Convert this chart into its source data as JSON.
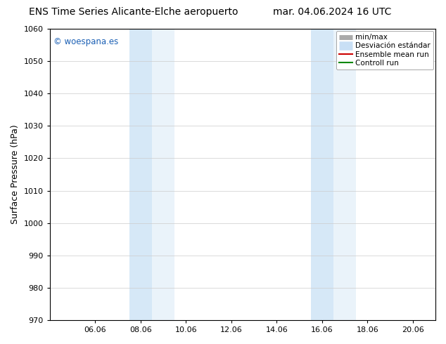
{
  "title_left": "ENS Time Series Alicante-Elche aeropuerto",
  "title_right": "mar. 04.06.2024 16 UTC",
  "ylabel": "Surface Pressure (hPa)",
  "ylim": [
    970,
    1060
  ],
  "yticks": [
    970,
    980,
    990,
    1000,
    1010,
    1020,
    1030,
    1040,
    1050,
    1060
  ],
  "xtick_labels": [
    "06.06",
    "08.06",
    "10.06",
    "12.06",
    "14.06",
    "16.06",
    "18.06",
    "20.06"
  ],
  "xtick_positions": [
    2,
    4,
    6,
    8,
    10,
    12,
    14,
    16
  ],
  "xlim": [
    0,
    17
  ],
  "background_color": "#ffffff",
  "plot_bg_color": "#ffffff",
  "grid_color": "#cccccc",
  "shade_color": "#d6e8f7",
  "shade_band1_start": 3.5,
  "shade_band1_mid": 4.5,
  "shade_band1_end": 5.5,
  "shade_band2_start": 11.5,
  "shade_band2_mid": 12.5,
  "shade_band2_end": 13.5,
  "watermark_text": "© woespana.es",
  "watermark_color": "#1a5fb4",
  "legend_labels": [
    "min/max",
    "Desviación estándar",
    "Ensemble mean run",
    "Controll run"
  ],
  "legend_colors": [
    "#aaaaaa",
    "#c8dff5",
    "#cc0000",
    "#008800"
  ],
  "legend_lws": [
    5,
    9,
    1.5,
    1.5
  ],
  "title_fontsize": 10,
  "ylabel_fontsize": 9,
  "tick_fontsize": 8,
  "legend_fontsize": 7.5,
  "watermark_fontsize": 8.5
}
